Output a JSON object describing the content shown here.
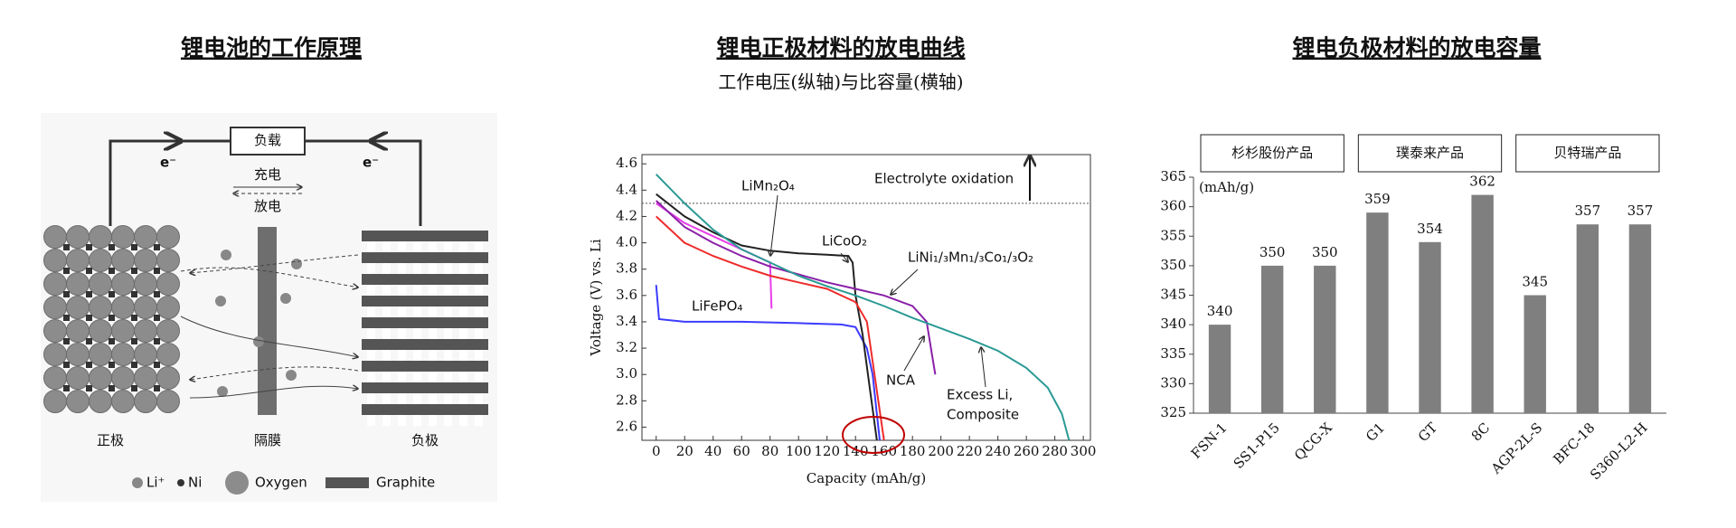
{
  "diagram": {
    "title": "锂电池的工作原理",
    "load": "负载",
    "charge": "充电",
    "discharge": "放电",
    "electron_left": "e⁻",
    "electron_right": "e⁻",
    "labels": [
      "正极",
      "隔膜",
      "负极"
    ],
    "legend": [
      "Li⁺",
      "Ni",
      "Oxygen",
      "Graphite"
    ]
  },
  "chart_data": [
    {
      "type": "line",
      "title": "锂电正极材料的放电曲线",
      "subtitle": "工作电压(纵轴)与比容量(横轴)",
      "xlabel": "Capacity (mAh/g)",
      "ylabel": "Voltage (V) vs. Li",
      "xlim": [
        -10,
        305
      ],
      "ylim": [
        2.5,
        4.67
      ],
      "xticks": [
        0,
        20,
        40,
        60,
        80,
        100,
        120,
        140,
        160,
        180,
        200,
        220,
        240,
        260,
        280,
        300
      ],
      "yticks": [
        {
          "value": 2.6,
          "label": "2.6"
        },
        {
          "value": 2.8,
          "label": "2.8"
        },
        {
          "value": 3,
          "label": "3.0"
        },
        {
          "value": 3.2,
          "label": "3.2"
        },
        {
          "value": 3.4,
          "label": "3.4"
        },
        {
          "value": 3.6,
          "label": "3.6"
        },
        {
          "value": 3.8,
          "label": "3.8"
        },
        {
          "value": 4,
          "label": "4.0"
        },
        {
          "value": 4.2,
          "label": "4.2"
        },
        {
          "value": 4.4,
          "label": "4.4"
        },
        {
          "value": 4.6,
          "label": "4.6"
        }
      ],
      "hline": 4.3,
      "grid": false,
      "annotations": [
        "Electrolyte oxidation",
        "LiMn₂O₄",
        "LiCoO₂",
        "LiNi₁/₃Mn₁/₃Co₁/₃O₂",
        "LiFePO₄",
        "NCA",
        "Excess Li,",
        "Composite"
      ],
      "series": [
        {
          "color": "#3b3bff",
          "x": [
            0,
            2,
            20,
            60,
            100,
            130,
            140,
            148,
            152,
            155,
            157
          ],
          "values": [
            3.68,
            3.42,
            3.4,
            3.4,
            3.39,
            3.38,
            3.36,
            3.2,
            3.0,
            2.7,
            2.5
          ]
        },
        {
          "color": "#e83ee8",
          "x": [
            0,
            20,
            40,
            60,
            80,
            81
          ],
          "values": [
            4.3,
            4.15,
            4.05,
            3.95,
            3.85,
            3.5
          ]
        },
        {
          "color": "#222222",
          "x": [
            0,
            20,
            40,
            60,
            80,
            100,
            120,
            135,
            138,
            140,
            145,
            150,
            155
          ],
          "values": [
            4.37,
            4.2,
            4.08,
            3.98,
            3.94,
            3.92,
            3.91,
            3.9,
            3.85,
            3.6,
            3.3,
            2.9,
            2.5
          ]
        },
        {
          "color": "#ee2b2b",
          "x": [
            0,
            20,
            40,
            60,
            80,
            100,
            120,
            140,
            148,
            152,
            156,
            160
          ],
          "values": [
            4.2,
            4.0,
            3.9,
            3.82,
            3.75,
            3.7,
            3.65,
            3.55,
            3.4,
            3.1,
            2.8,
            2.5
          ]
        },
        {
          "color": "#8a1fa8",
          "x": [
            0,
            20,
            40,
            60,
            80,
            100,
            120,
            140,
            160,
            180,
            190,
            193,
            196
          ],
          "values": [
            4.32,
            4.12,
            4.0,
            3.9,
            3.82,
            3.76,
            3.7,
            3.65,
            3.6,
            3.52,
            3.4,
            3.2,
            3.0
          ]
        },
        {
          "color": "#2a9a94",
          "x": [
            0,
            20,
            40,
            60,
            80,
            100,
            120,
            140,
            160,
            180,
            200,
            220,
            240,
            260,
            275,
            285,
            290
          ],
          "values": [
            4.52,
            4.3,
            4.1,
            3.95,
            3.85,
            3.75,
            3.67,
            3.6,
            3.52,
            3.43,
            3.35,
            3.27,
            3.18,
            3.05,
            2.9,
            2.7,
            2.5
          ]
        }
      ]
    },
    {
      "type": "bar",
      "title": "锂电负极材料的放电容量",
      "ylabel": "(mAh/g)",
      "groups": [
        "杉杉股份产品",
        "璞泰来产品",
        "贝特瑞产品"
      ],
      "categories": [
        "FSN-1",
        "SS1-P15",
        "QCG-X",
        "G1",
        "GT",
        "8C",
        "AGP-2L-S",
        "BFC-18",
        "S360-L2-H"
      ],
      "values": [
        340,
        350,
        350,
        359,
        354,
        362,
        345,
        357,
        357
      ],
      "color": "#7f7f7f",
      "ylim": [
        325,
        365
      ],
      "yticks": [
        325,
        330,
        335,
        340,
        345,
        350,
        355,
        360,
        365
      ],
      "grid": false
    }
  ]
}
